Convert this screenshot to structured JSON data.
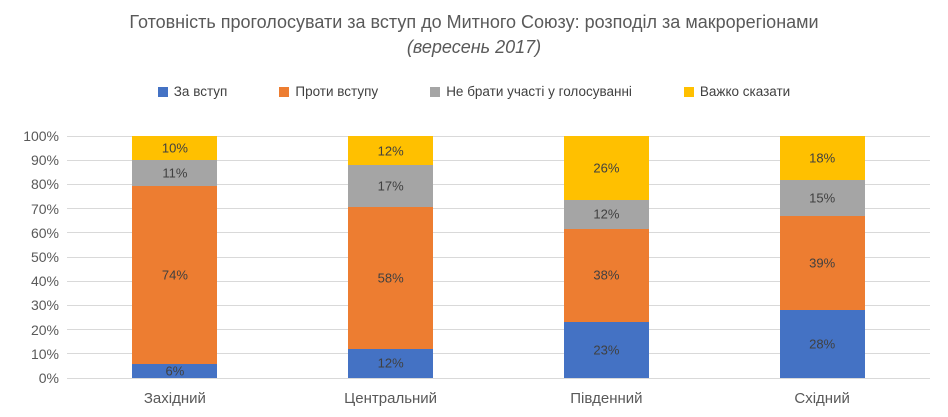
{
  "title": {
    "text_main": "Готовність проголосувати за вступ до Митного Союзу: розподіл за макрорегіонами",
    "text_italic": "(вересень 2017)"
  },
  "chart_data": {
    "type": "bar",
    "subtype": "stacked-100-percent",
    "title": "Готовність проголосувати за вступ до Митного Союзу: розподіл за макрорегіонами (вересень 2017)",
    "categories": [
      "Західний",
      "Центральний",
      "Південний",
      "Східний"
    ],
    "series": [
      {
        "name": "За вступ",
        "color": "#4472C4",
        "values": [
          6,
          12,
          23,
          28
        ]
      },
      {
        "name": "Проти вступу",
        "color": "#ED7D31",
        "values": [
          74,
          58,
          38,
          39
        ]
      },
      {
        "name": "Не брати участі у голосуванні",
        "color": "#A5A5A5",
        "values": [
          11,
          17,
          12,
          15
        ]
      },
      {
        "name": "Важко сказати",
        "color": "#FFC000",
        "values": [
          10,
          12,
          26,
          18
        ]
      }
    ],
    "data_label_suffix": "%",
    "y_axis": {
      "min": 0,
      "max": 100,
      "ticks": [
        "0%",
        "10%",
        "20%",
        "30%",
        "40%",
        "50%",
        "60%",
        "70%",
        "80%",
        "90%",
        "100%"
      ]
    },
    "xlabel": "",
    "ylabel": "",
    "legend_position": "top",
    "grid": true,
    "grid_color": "#D9D9D9",
    "axis_text_color": "#595959",
    "data_label_color": "#404040"
  }
}
